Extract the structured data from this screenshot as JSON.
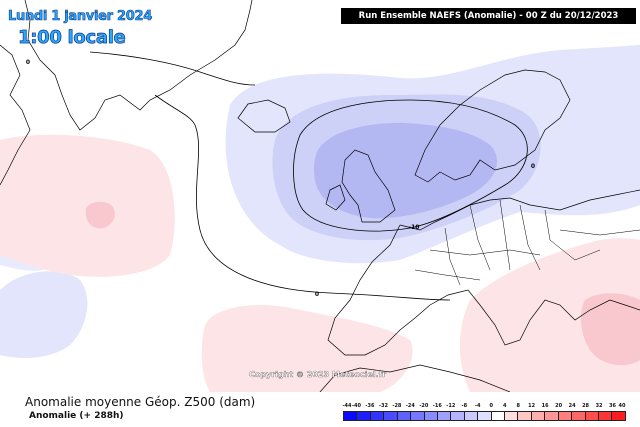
{
  "map": {
    "date_label": "Lundi 1 janvier 2024",
    "time_label": "1:00 locale",
    "header": "Run Ensemble NAEFS  (Anomalie)  -  00 Z du 20/12/2023",
    "copyright": "Copyright © 2023 Meteociel.fr",
    "contour_labels": [
      "0",
      "0",
      "-10",
      "0"
    ],
    "colors": {
      "negative_light": "#dfe3fb",
      "negative_mid": "#c7cbf6",
      "negative_dark": "#aeb2f0",
      "positive_light": "#fde3e6",
      "positive_mid": "#f8c9cf",
      "coastline": "#000000"
    }
  },
  "footer": {
    "title": "Anomalie moyenne Géop. Z500 (dam)",
    "subtitle": "Anomalie (+ 288h)"
  },
  "legend": {
    "ticks": [
      "-44",
      "-40",
      "-36",
      "-32",
      "-28",
      "-24",
      "-20",
      "-16",
      "-12",
      "-8",
      "-4",
      "0",
      "4",
      "8",
      "12",
      "16",
      "20",
      "24",
      "28",
      "32",
      "36",
      "40"
    ],
    "colors": [
      "#0a0aff",
      "#1e1eff",
      "#3333ff",
      "#4a4aff",
      "#6060ff",
      "#7676ff",
      "#8b8bff",
      "#a0a0ff",
      "#b5b5ff",
      "#cacaff",
      "#dfdfff",
      "#ffffff",
      "#ffdede",
      "#ffc6c6",
      "#ffaeae",
      "#ff9696",
      "#ff7e7e",
      "#ff6666",
      "#ff4e4e",
      "#ff3636",
      "#ff1e1e"
    ]
  }
}
